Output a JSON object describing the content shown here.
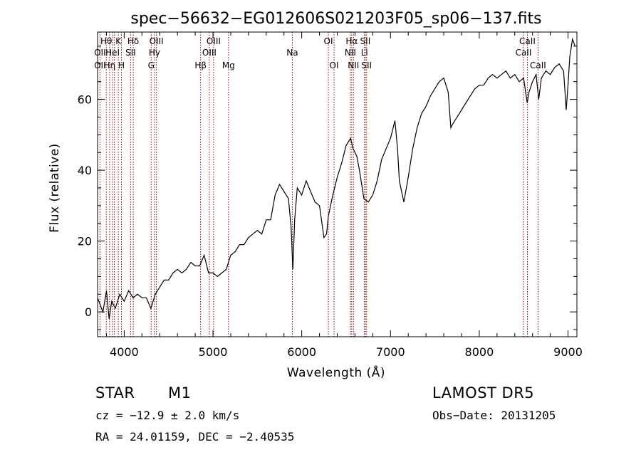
{
  "chart_data": {
    "type": "line",
    "title": "spec−56632−EG012606S021203F05_sp06−137.fits",
    "xlabel": "Wavelength (Å)",
    "ylabel": "Flux (relative)",
    "xlim": [
      3700,
      9100
    ],
    "ylim": [
      -7,
      79
    ],
    "x_ticks": [
      4000,
      5000,
      6000,
      7000,
      8000,
      9000
    ],
    "y_ticks": [
      0,
      20,
      40,
      60
    ],
    "grid": false,
    "series": [
      {
        "color": "#000000",
        "points": [
          [
            3700,
            4
          ],
          [
            3760,
            0
          ],
          [
            3800,
            6
          ],
          [
            3830,
            -2
          ],
          [
            3860,
            3
          ],
          [
            3900,
            1
          ],
          [
            3950,
            5
          ],
          [
            4000,
            3
          ],
          [
            4050,
            6
          ],
          [
            4100,
            4
          ],
          [
            4150,
            5
          ],
          [
            4200,
            4
          ],
          [
            4250,
            4
          ],
          [
            4300,
            1
          ],
          [
            4350,
            5
          ],
          [
            4400,
            7
          ],
          [
            4450,
            9
          ],
          [
            4500,
            9
          ],
          [
            4550,
            11
          ],
          [
            4600,
            12
          ],
          [
            4650,
            11
          ],
          [
            4700,
            12
          ],
          [
            4750,
            14
          ],
          [
            4800,
            13
          ],
          [
            4850,
            13
          ],
          [
            4900,
            16
          ],
          [
            4950,
            11
          ],
          [
            5000,
            11
          ],
          [
            5050,
            10
          ],
          [
            5100,
            11
          ],
          [
            5150,
            12
          ],
          [
            5200,
            16
          ],
          [
            5250,
            17
          ],
          [
            5300,
            19
          ],
          [
            5350,
            19
          ],
          [
            5400,
            21
          ],
          [
            5450,
            22
          ],
          [
            5500,
            23
          ],
          [
            5550,
            22
          ],
          [
            5600,
            26
          ],
          [
            5650,
            26
          ],
          [
            5700,
            33
          ],
          [
            5750,
            36
          ],
          [
            5800,
            34
          ],
          [
            5850,
            32
          ],
          [
            5880,
            24
          ],
          [
            5900,
            12
          ],
          [
            5920,
            26
          ],
          [
            5950,
            35
          ],
          [
            6000,
            33
          ],
          [
            6050,
            37
          ],
          [
            6100,
            34
          ],
          [
            6150,
            31
          ],
          [
            6200,
            30
          ],
          [
            6250,
            21
          ],
          [
            6280,
            22
          ],
          [
            6300,
            27
          ],
          [
            6350,
            33
          ],
          [
            6400,
            38
          ],
          [
            6450,
            42
          ],
          [
            6500,
            47
          ],
          [
            6550,
            49
          ],
          [
            6580,
            46
          ],
          [
            6620,
            44
          ],
          [
            6650,
            40
          ],
          [
            6700,
            32
          ],
          [
            6750,
            31
          ],
          [
            6800,
            33
          ],
          [
            6850,
            37
          ],
          [
            6900,
            43
          ],
          [
            6950,
            46
          ],
          [
            7000,
            49
          ],
          [
            7050,
            54
          ],
          [
            7080,
            46
          ],
          [
            7100,
            37
          ],
          [
            7150,
            31
          ],
          [
            7200,
            38
          ],
          [
            7250,
            46
          ],
          [
            7300,
            52
          ],
          [
            7350,
            56
          ],
          [
            7400,
            58
          ],
          [
            7450,
            61
          ],
          [
            7500,
            63
          ],
          [
            7550,
            65
          ],
          [
            7600,
            66
          ],
          [
            7650,
            62
          ],
          [
            7680,
            52
          ],
          [
            7700,
            53
          ],
          [
            7750,
            55
          ],
          [
            7800,
            57
          ],
          [
            7850,
            59
          ],
          [
            7900,
            61
          ],
          [
            7950,
            63
          ],
          [
            8000,
            64
          ],
          [
            8050,
            64
          ],
          [
            8100,
            66
          ],
          [
            8150,
            67
          ],
          [
            8200,
            66
          ],
          [
            8250,
            67
          ],
          [
            8300,
            68
          ],
          [
            8350,
            66
          ],
          [
            8400,
            67
          ],
          [
            8450,
            65
          ],
          [
            8500,
            66
          ],
          [
            8540,
            59
          ],
          [
            8560,
            62
          ],
          [
            8600,
            65
          ],
          [
            8640,
            67
          ],
          [
            8670,
            60
          ],
          [
            8700,
            66
          ],
          [
            8750,
            68
          ],
          [
            8800,
            67
          ],
          [
            8850,
            69
          ],
          [
            8900,
            70
          ],
          [
            8950,
            68
          ],
          [
            8980,
            57
          ],
          [
            9000,
            64
          ],
          [
            9020,
            72
          ],
          [
            9050,
            77
          ],
          [
            9080,
            75
          ]
        ]
      }
    ],
    "annotations": {
      "color": "#8b0000",
      "lines": [
        {
          "x": 3727,
          "row1": "",
          "row2": "OII",
          "row3": "OII"
        },
        {
          "x": 3798,
          "row1": "Hθ",
          "row2": "",
          "row3": ""
        },
        {
          "x": 3835,
          "row1": "",
          "row2": "",
          "row3": "Hη"
        },
        {
          "x": 3869,
          "row1": "",
          "row2": "HeI",
          "row3": ""
        },
        {
          "x": 3890,
          "row1": "",
          "row2": "",
          "row3": ""
        },
        {
          "x": 3934,
          "row1": "K",
          "row2": "",
          "row3": ""
        },
        {
          "x": 3969,
          "row1": "",
          "row2": "",
          "row3": "H"
        },
        {
          "x": 4072,
          "row1": "",
          "row2": "SII",
          "row3": ""
        },
        {
          "x": 4102,
          "row1": "Hδ",
          "row2": "",
          "row3": ""
        },
        {
          "x": 4304,
          "row1": "",
          "row2": "",
          "row3": "G"
        },
        {
          "x": 4341,
          "row1": "",
          "row2": "Hγ",
          "row3": ""
        },
        {
          "x": 4363,
          "row1": "OIII",
          "row2": "",
          "row3": ""
        },
        {
          "x": 4861,
          "row1": "",
          "row2": "",
          "row3": "Hβ"
        },
        {
          "x": 4959,
          "row1": "",
          "row2": "OIII",
          "row3": ""
        },
        {
          "x": 5007,
          "row1": "OIII",
          "row2": "",
          "row3": ""
        },
        {
          "x": 5175,
          "row1": "",
          "row2": "",
          "row3": "Mg"
        },
        {
          "x": 5894,
          "row1": "",
          "row2": "Na",
          "row3": ""
        },
        {
          "x": 6300,
          "row1": "OI",
          "row2": "",
          "row3": ""
        },
        {
          "x": 6364,
          "row1": "",
          "row2": "",
          "row3": "OI"
        },
        {
          "x": 6548,
          "row1": "",
          "row2": "NII",
          "row3": ""
        },
        {
          "x": 6563,
          "row1": "Hα",
          "row2": "",
          "row3": ""
        },
        {
          "x": 6583,
          "row1": "",
          "row2": "",
          "row3": "NII"
        },
        {
          "x": 6707,
          "row1": "",
          "row2": "Li",
          "row3": ""
        },
        {
          "x": 6716,
          "row1": "SII",
          "row2": "",
          "row3": ""
        },
        {
          "x": 6731,
          "row1": "",
          "row2": "",
          "row3": "SII"
        },
        {
          "x": 8498,
          "row1": "",
          "row2": "CaII",
          "row3": ""
        },
        {
          "x": 8542,
          "row1": "CaII",
          "row2": "",
          "row3": ""
        },
        {
          "x": 8662,
          "row1": "",
          "row2": "",
          "row3": "CaII"
        }
      ]
    }
  },
  "info": {
    "class": "STAR",
    "subclass": "M1",
    "survey": "LAMOST DR5",
    "cz": "cz = −12.9 ± 2.0 km/s",
    "obs_date": "Obs−Date: 20131205",
    "coords": "RA =  24.01159, DEC =  −2.40535"
  }
}
